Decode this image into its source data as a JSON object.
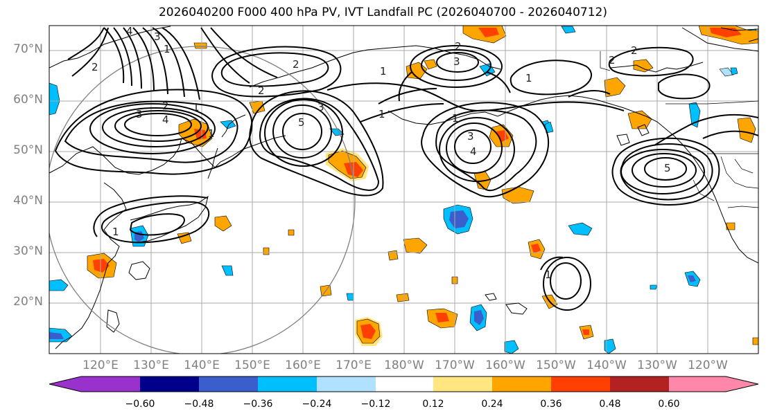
{
  "title": "2026040200 F000 400 hPa PV, IVT Landfall PC (2026040700 - 2026040712)",
  "lat_labels": [
    "70°N",
    "60°N",
    "50°N",
    "40°N",
    "30°N",
    "20°N"
  ],
  "lon_labels": [
    "120°E",
    "130°E",
    "140°E",
    "150°E",
    "160°E",
    "170°E",
    "180°W",
    "170°W",
    "160°W",
    "150°W",
    "140°W",
    "130°W",
    "120°W"
  ],
  "colorbar": {
    "ticks": [
      "−0.60",
      "−0.48",
      "−0.36",
      "−0.24",
      "−0.12",
      "0.12",
      "0.24",
      "0.36",
      "0.48",
      "0.60"
    ],
    "colors": [
      "#9932cc",
      "#00008b",
      "#3a5fcd",
      "#00bfff",
      "#b0e2ff",
      "#ffffff",
      "#ffe680",
      "#ffa500",
      "#ff4000",
      "#b22222",
      "#ff88aa"
    ]
  },
  "contour_labels": [
    "4",
    "3",
    "2",
    "1",
    "2",
    "1",
    "2",
    "3",
    "1",
    "2",
    "5",
    "3",
    "4",
    "1",
    "3",
    "4",
    "1",
    "5",
    "1",
    "1",
    "2",
    "1",
    "2",
    "1",
    "3",
    "2"
  ]
}
